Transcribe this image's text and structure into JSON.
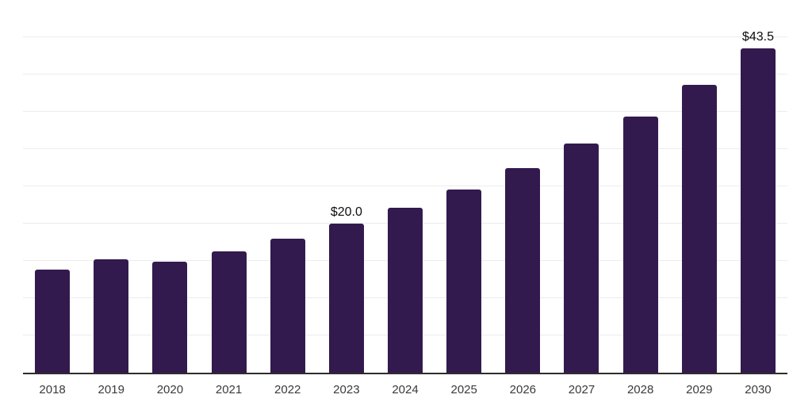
{
  "chart_data": {
    "type": "bar",
    "title": "",
    "xlabel": "",
    "ylabel": "",
    "categories": [
      "2018",
      "2019",
      "2020",
      "2021",
      "2022",
      "2023",
      "2024",
      "2025",
      "2026",
      "2027",
      "2028",
      "2029",
      "2030"
    ],
    "values": [
      13.8,
      15.2,
      14.9,
      16.3,
      18.0,
      20.0,
      22.1,
      24.6,
      27.5,
      30.7,
      34.4,
      38.6,
      43.5
    ],
    "bar_labels": [
      {
        "category": "2023",
        "text": "$20.0"
      },
      {
        "category": "2030",
        "text": "$43.5"
      }
    ],
    "ylim": [
      0,
      50
    ],
    "gridline_step": 5,
    "grid_on": true,
    "legend": "none",
    "colors": {
      "bar": "#321a4e",
      "grid": "#ececec",
      "axis": "#2d2d2d",
      "tick_label": "#3a3a3a",
      "value_label": "#0d0d0d",
      "background": "#ffffff"
    }
  }
}
